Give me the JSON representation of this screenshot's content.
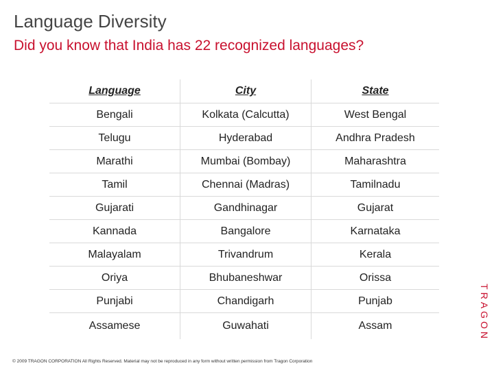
{
  "title": "Language Diversity",
  "subtitle": "Did you know that India has 22 recognized languages?",
  "table": {
    "headers": [
      "Language",
      "City",
      "State"
    ],
    "rows": [
      [
        "Bengali",
        "Kolkata (Calcutta)",
        "West Bengal"
      ],
      [
        "Telugu",
        "Hyderabad",
        "Andhra Pradesh"
      ],
      [
        "Marathi",
        "Mumbai (Bombay)",
        "Maharashtra"
      ],
      [
        "Tamil",
        "Chennai (Madras)",
        "Tamilnadu"
      ],
      [
        "Gujarati",
        "Gandhinagar",
        "Gujarat"
      ],
      [
        "Kannada",
        "Bangalore",
        "Karnataka"
      ],
      [
        "Malayalam",
        "Trivandrum",
        "Kerala"
      ],
      [
        "Oriya",
        "Bhubaneshwar",
        "Orissa"
      ],
      [
        "Punjabi",
        "Chandigarh",
        "Punjab"
      ],
      [
        "Assamese",
        "Guwahati",
        "Assam"
      ]
    ]
  },
  "footer": "© 2009 TRAGON CORPORATION All Rights Reserved. Material may not be reproduced in any form without written permission from Tragon Corporation",
  "brand": "TRAGON",
  "colors": {
    "accent": "#c8102e",
    "title": "#444444",
    "rule": "#d9d9d9"
  }
}
